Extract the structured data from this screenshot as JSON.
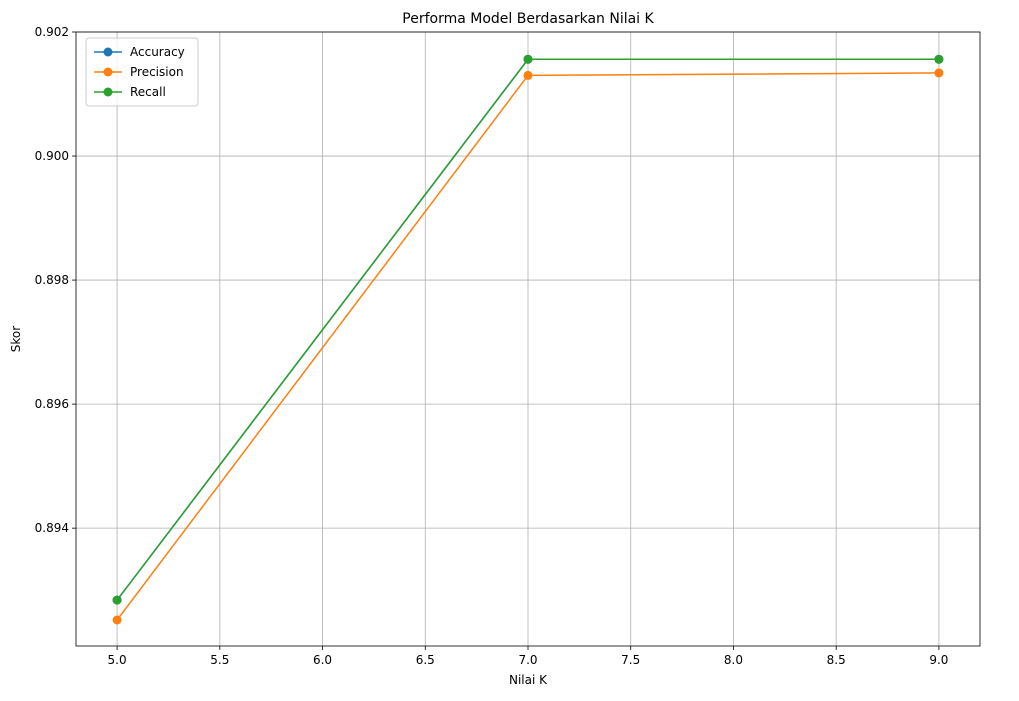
{
  "chart_data": {
    "type": "line",
    "title": "Performa Model Berdasarkan Nilai K",
    "xlabel": "Nilai K",
    "ylabel": "Skor",
    "xlim": [
      4.8,
      9.2
    ],
    "ylim": [
      0.8921,
      0.902
    ],
    "x_ticks": [
      5.0,
      5.5,
      6.0,
      6.5,
      7.0,
      7.5,
      8.0,
      8.5,
      9.0
    ],
    "x_tick_labels": [
      "5.0",
      "5.5",
      "6.0",
      "6.5",
      "7.0",
      "7.5",
      "8.0",
      "8.5",
      "9.0"
    ],
    "y_ticks": [
      0.894,
      0.896,
      0.898,
      0.9,
      0.902
    ],
    "y_tick_labels": [
      "0.894",
      "0.896",
      "0.898",
      "0.900",
      "0.902"
    ],
    "grid": true,
    "legend_position": "top-left",
    "x": [
      5,
      7,
      9
    ],
    "series": [
      {
        "name": "Accuracy",
        "color": "#1f77b4",
        "values": [
          0.89284,
          0.90156,
          0.90156
        ]
      },
      {
        "name": "Precision",
        "color": "#ff7f0e",
        "values": [
          0.89252,
          0.9013,
          0.90134
        ]
      },
      {
        "name": "Recall",
        "color": "#2ca02c",
        "values": [
          0.89284,
          0.90156,
          0.90156
        ]
      }
    ]
  }
}
